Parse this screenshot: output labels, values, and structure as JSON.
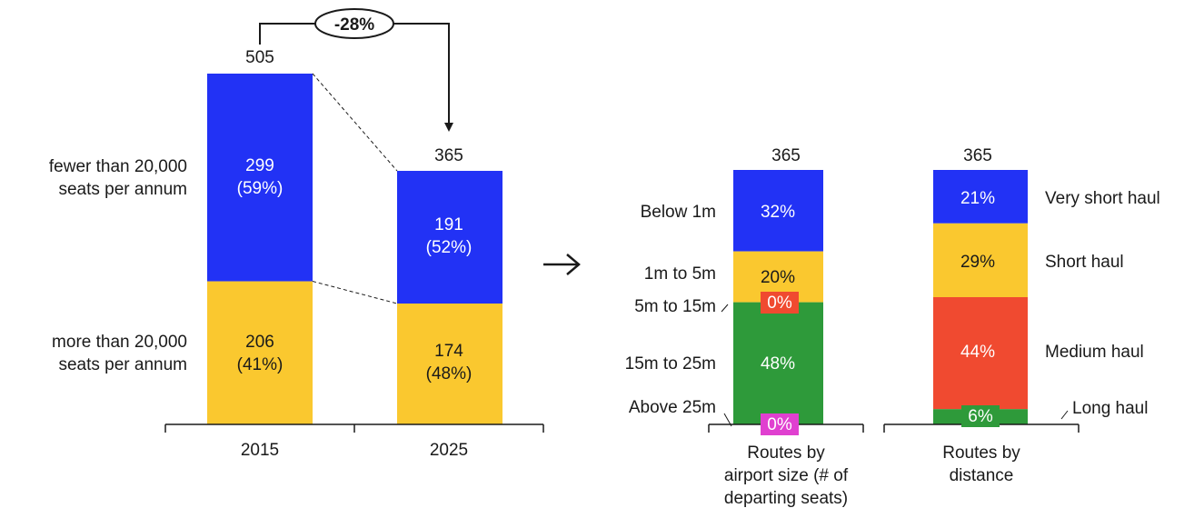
{
  "colors": {
    "blue": "#2232F5",
    "yellow": "#FAC82F",
    "green": "#2E9A3A",
    "red": "#F04A30",
    "magenta": "#E040D0",
    "axis": "#1a1a1a"
  },
  "chart_data": [
    {
      "type": "bar",
      "stacked": true,
      "categories": [
        "2015",
        "2025"
      ],
      "totals": [
        "505",
        "365"
      ],
      "total_values": [
        505,
        365
      ],
      "series": [
        {
          "name": "fewer than 20,000 seats per annum",
          "label_lines": [
            "fewer than 20,000",
            "seats per annum"
          ],
          "values": [
            299,
            191
          ],
          "value_labels": [
            "299",
            "191"
          ],
          "pct_labels": [
            "(59%)",
            "(52%)"
          ],
          "color": "#2232F5"
        },
        {
          "name": "more than 20,000 seats per annum",
          "label_lines": [
            "more than 20,000",
            "seats per annum"
          ],
          "values": [
            206,
            174
          ],
          "value_labels": [
            "206",
            "174"
          ],
          "pct_labels": [
            "(41%)",
            "(48%)"
          ],
          "color": "#FAC82F"
        }
      ],
      "change_label": "-28%"
    },
    {
      "type": "bar",
      "stacked": true,
      "category_lines": [
        "Routes by",
        "airport size (# of",
        "departing seats)"
      ],
      "total": "365",
      "segments": [
        {
          "name": "Below 1m",
          "value": 32,
          "label": "32%",
          "color": "#2232F5"
        },
        {
          "name": "1m to 5m",
          "value": 20,
          "label": "20%",
          "color": "#FAC82F"
        },
        {
          "name": "5m to 15m",
          "value": 0,
          "label": "0%",
          "color": "#F04A30"
        },
        {
          "name": "15m to 25m",
          "value": 48,
          "label": "48%",
          "color": "#2E9A3A"
        },
        {
          "name": "Above 25m",
          "value": 0,
          "label": "0%",
          "color": "#E040D0"
        }
      ]
    },
    {
      "type": "bar",
      "stacked": true,
      "category_lines": [
        "Routes by",
        "distance"
      ],
      "total": "365",
      "segments": [
        {
          "name": "Very short haul",
          "value": 21,
          "label": "21%",
          "color": "#2232F5"
        },
        {
          "name": "Short haul",
          "value": 29,
          "label": "29%",
          "color": "#FAC82F"
        },
        {
          "name": "Medium haul",
          "value": 44,
          "label": "44%",
          "color": "#F04A30"
        },
        {
          "name": "Long haul",
          "value": 6,
          "label": "6%",
          "color": "#2E9A3A"
        }
      ]
    }
  ]
}
